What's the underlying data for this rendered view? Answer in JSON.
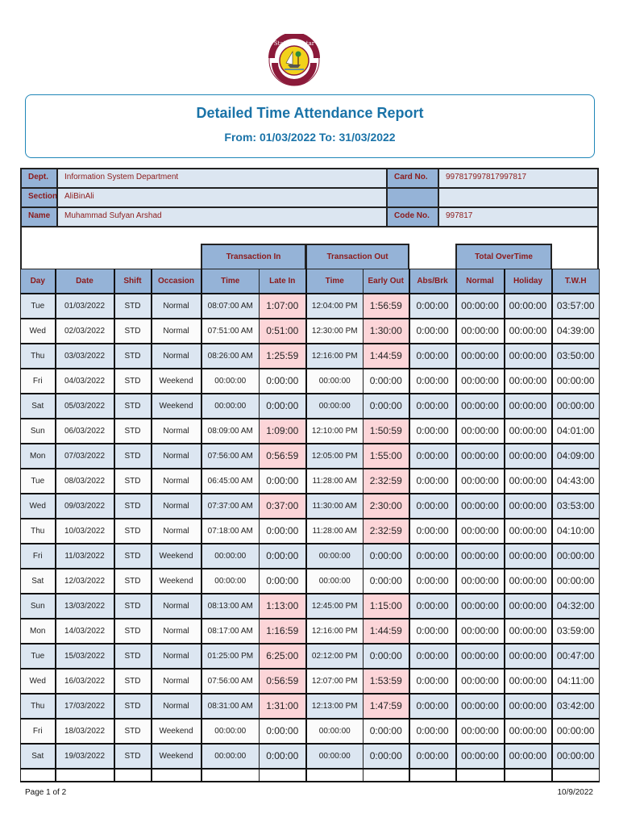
{
  "logo": {
    "top_text": "State of Qatar",
    "bottom_text": "MINISTRY OF PUBLIC HEALTH",
    "colors": {
      "maroon": "#8b1a3a",
      "gold": "#f2d21b"
    }
  },
  "header": {
    "title": "Detailed Time Attendance  Report",
    "range": "From: 01/03/2022 To: 31/03/2022"
  },
  "info": {
    "dept_label": "Dept.",
    "dept_value": "Information System Department",
    "section_label": "Section",
    "section_value": "AliBinAli",
    "name_label": "Name",
    "name_value": "Muhammad Sufyan Arshad",
    "card_label": "Card No.",
    "card_value": "997817997817997817",
    "blank_label": "",
    "blank_value": "",
    "code_label": "Code No.",
    "code_value": "997817"
  },
  "groups": {
    "transaction_in": "Transaction In",
    "transaction_out": "Transaction Out",
    "total_overtime": "Total OverTime"
  },
  "columns": [
    "Day",
    "Date",
    "Shift",
    "Occasion",
    "Time",
    "Late In",
    "Time",
    "Early Out",
    "Abs/Brk",
    "Normal",
    "Holiday",
    "T.W.H"
  ],
  "rows": [
    {
      "day": "Tue",
      "date": "01/03/2022",
      "shift": "STD",
      "occasion": "Normal",
      "in_time": "08:07:00 AM",
      "late_in": "1:07:00",
      "out_time": "12:04:00 PM",
      "early_out": "1:56:59",
      "abs_brk": "0:00:00",
      "ot_normal": "00:00:00",
      "ot_holiday": "00:00:00",
      "twh": "03:57:00",
      "late_flag": true,
      "early_flag": true
    },
    {
      "day": "Wed",
      "date": "02/03/2022",
      "shift": "STD",
      "occasion": "Normal",
      "in_time": "07:51:00 AM",
      "late_in": "0:51:00",
      "out_time": "12:30:00 PM",
      "early_out": "1:30:00",
      "abs_brk": "0:00:00",
      "ot_normal": "00:00:00",
      "ot_holiday": "00:00:00",
      "twh": "04:39:00",
      "late_flag": true,
      "early_flag": true
    },
    {
      "day": "Thu",
      "date": "03/03/2022",
      "shift": "STD",
      "occasion": "Normal",
      "in_time": "08:26:00 AM",
      "late_in": "1:25:59",
      "out_time": "12:16:00 PM",
      "early_out": "1:44:59",
      "abs_brk": "0:00:00",
      "ot_normal": "00:00:00",
      "ot_holiday": "00:00:00",
      "twh": "03:50:00",
      "late_flag": true,
      "early_flag": true
    },
    {
      "day": "Fri",
      "date": "04/03/2022",
      "shift": "STD",
      "occasion": "Weekend",
      "in_time": "00:00:00",
      "late_in": "0:00:00",
      "out_time": "00:00:00",
      "early_out": "0:00:00",
      "abs_brk": "0:00:00",
      "ot_normal": "00:00:00",
      "ot_holiday": "00:00:00",
      "twh": "00:00:00",
      "late_flag": false,
      "early_flag": false
    },
    {
      "day": "Sat",
      "date": "05/03/2022",
      "shift": "STD",
      "occasion": "Weekend",
      "in_time": "00:00:00",
      "late_in": "0:00:00",
      "out_time": "00:00:00",
      "early_out": "0:00:00",
      "abs_brk": "0:00:00",
      "ot_normal": "00:00:00",
      "ot_holiday": "00:00:00",
      "twh": "00:00:00",
      "late_flag": false,
      "early_flag": false
    },
    {
      "day": "Sun",
      "date": "06/03/2022",
      "shift": "STD",
      "occasion": "Normal",
      "in_time": "08:09:00 AM",
      "late_in": "1:09:00",
      "out_time": "12:10:00 PM",
      "early_out": "1:50:59",
      "abs_brk": "0:00:00",
      "ot_normal": "00:00:00",
      "ot_holiday": "00:00:00",
      "twh": "04:01:00",
      "late_flag": true,
      "early_flag": true
    },
    {
      "day": "Mon",
      "date": "07/03/2022",
      "shift": "STD",
      "occasion": "Normal",
      "in_time": "07:56:00 AM",
      "late_in": "0:56:59",
      "out_time": "12:05:00 PM",
      "early_out": "1:55:00",
      "abs_brk": "0:00:00",
      "ot_normal": "00:00:00",
      "ot_holiday": "00:00:00",
      "twh": "04:09:00",
      "late_flag": true,
      "early_flag": true
    },
    {
      "day": "Tue",
      "date": "08/03/2022",
      "shift": "STD",
      "occasion": "Normal",
      "in_time": "06:45:00 AM",
      "late_in": "0:00:00",
      "out_time": "11:28:00 AM",
      "early_out": "2:32:59",
      "abs_brk": "0:00:00",
      "ot_normal": "00:00:00",
      "ot_holiday": "00:00:00",
      "twh": "04:43:00",
      "late_flag": false,
      "early_flag": true
    },
    {
      "day": "Wed",
      "date": "09/03/2022",
      "shift": "STD",
      "occasion": "Normal",
      "in_time": "07:37:00 AM",
      "late_in": "0:37:00",
      "out_time": "11:30:00 AM",
      "early_out": "2:30:00",
      "abs_brk": "0:00:00",
      "ot_normal": "00:00:00",
      "ot_holiday": "00:00:00",
      "twh": "03:53:00",
      "late_flag": true,
      "early_flag": true
    },
    {
      "day": "Thu",
      "date": "10/03/2022",
      "shift": "STD",
      "occasion": "Normal",
      "in_time": "07:18:00 AM",
      "late_in": "0:00:00",
      "out_time": "11:28:00 AM",
      "early_out": "2:32:59",
      "abs_brk": "0:00:00",
      "ot_normal": "00:00:00",
      "ot_holiday": "00:00:00",
      "twh": "04:10:00",
      "late_flag": false,
      "early_flag": true
    },
    {
      "day": "Fri",
      "date": "11/03/2022",
      "shift": "STD",
      "occasion": "Weekend",
      "in_time": "00:00:00",
      "late_in": "0:00:00",
      "out_time": "00:00:00",
      "early_out": "0:00:00",
      "abs_brk": "0:00:00",
      "ot_normal": "00:00:00",
      "ot_holiday": "00:00:00",
      "twh": "00:00:00",
      "late_flag": false,
      "early_flag": false
    },
    {
      "day": "Sat",
      "date": "12/03/2022",
      "shift": "STD",
      "occasion": "Weekend",
      "in_time": "00:00:00",
      "late_in": "0:00:00",
      "out_time": "00:00:00",
      "early_out": "0:00:00",
      "abs_brk": "0:00:00",
      "ot_normal": "00:00:00",
      "ot_holiday": "00:00:00",
      "twh": "00:00:00",
      "late_flag": false,
      "early_flag": false
    },
    {
      "day": "Sun",
      "date": "13/03/2022",
      "shift": "STD",
      "occasion": "Normal",
      "in_time": "08:13:00 AM",
      "late_in": "1:13:00",
      "out_time": "12:45:00 PM",
      "early_out": "1:15:00",
      "abs_brk": "0:00:00",
      "ot_normal": "00:00:00",
      "ot_holiday": "00:00:00",
      "twh": "04:32:00",
      "late_flag": true,
      "early_flag": true
    },
    {
      "day": "Mon",
      "date": "14/03/2022",
      "shift": "STD",
      "occasion": "Normal",
      "in_time": "08:17:00 AM",
      "late_in": "1:16:59",
      "out_time": "12:16:00 PM",
      "early_out": "1:44:59",
      "abs_brk": "0:00:00",
      "ot_normal": "00:00:00",
      "ot_holiday": "00:00:00",
      "twh": "03:59:00",
      "late_flag": true,
      "early_flag": true
    },
    {
      "day": "Tue",
      "date": "15/03/2022",
      "shift": "STD",
      "occasion": "Normal",
      "in_time": "01:25:00 PM",
      "late_in": "6:25:00",
      "out_time": "02:12:00 PM",
      "early_out": "0:00:00",
      "abs_brk": "0:00:00",
      "ot_normal": "00:00:00",
      "ot_holiday": "00:00:00",
      "twh": "00:47:00",
      "late_flag": true,
      "early_flag": false
    },
    {
      "day": "Wed",
      "date": "16/03/2022",
      "shift": "STD",
      "occasion": "Normal",
      "in_time": "07:56:00 AM",
      "late_in": "0:56:59",
      "out_time": "12:07:00 PM",
      "early_out": "1:53:59",
      "abs_brk": "0:00:00",
      "ot_normal": "00:00:00",
      "ot_holiday": "00:00:00",
      "twh": "04:11:00",
      "late_flag": true,
      "early_flag": true
    },
    {
      "day": "Thu",
      "date": "17/03/2022",
      "shift": "STD",
      "occasion": "Normal",
      "in_time": "08:31:00 AM",
      "late_in": "1:31:00",
      "out_time": "12:13:00 PM",
      "early_out": "1:47:59",
      "abs_brk": "0:00:00",
      "ot_normal": "00:00:00",
      "ot_holiday": "00:00:00",
      "twh": "03:42:00",
      "late_flag": true,
      "early_flag": true
    },
    {
      "day": "Fri",
      "date": "18/03/2022",
      "shift": "STD",
      "occasion": "Weekend",
      "in_time": "00:00:00",
      "late_in": "0:00:00",
      "out_time": "00:00:00",
      "early_out": "0:00:00",
      "abs_brk": "0:00:00",
      "ot_normal": "00:00:00",
      "ot_holiday": "00:00:00",
      "twh": "00:00:00",
      "late_flag": false,
      "early_flag": false
    },
    {
      "day": "Sat",
      "date": "19/03/2022",
      "shift": "STD",
      "occasion": "Weekend",
      "in_time": "00:00:00",
      "late_in": "0:00:00",
      "out_time": "00:00:00",
      "early_out": "0:00:00",
      "abs_brk": "0:00:00",
      "ot_normal": "00:00:00",
      "ot_holiday": "00:00:00",
      "twh": "00:00:00",
      "late_flag": false,
      "early_flag": false
    }
  ],
  "footer": {
    "page": "Page 1 of 2",
    "date": "10/9/2022"
  },
  "colors": {
    "header_blue": "#95b3d7",
    "row_blue": "#dce6f1",
    "flag_pink": "#fcd5d8",
    "label_red": "#8b1a1a",
    "title_blue": "#1a73a8"
  }
}
